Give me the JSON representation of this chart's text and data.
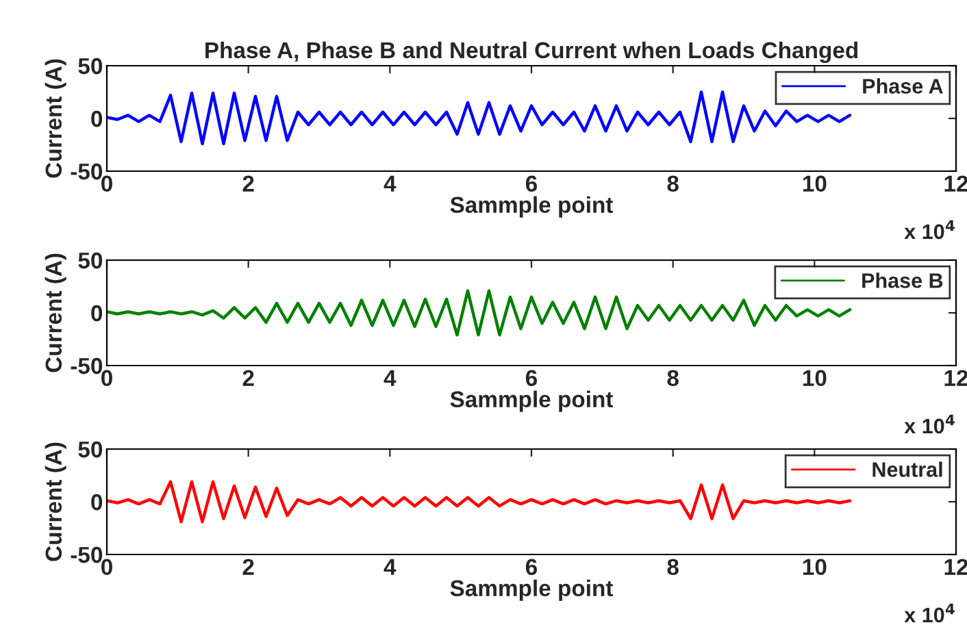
{
  "chart_data": [
    {
      "type": "line",
      "title": "Phase A, Phase B and Neutral Current when Loads Changed",
      "xlabel": "Sammple point",
      "ylabel": "Current (A)",
      "annotations": [
        "x 10$^{4}$"
      ],
      "x": [
        0,
        0.15,
        0.3,
        0.45,
        0.6,
        0.75,
        0.9,
        1.05,
        1.2,
        1.35,
        1.5,
        1.65,
        1.8,
        1.95,
        2.1,
        2.25,
        2.4,
        2.55,
        2.7,
        2.85,
        3.0,
        3.15,
        3.3,
        3.45,
        3.6,
        3.75,
        3.9,
        4.05,
        4.2,
        4.35,
        4.5,
        4.65,
        4.8,
        4.95,
        5.1,
        5.25,
        5.4,
        5.55,
        5.7,
        5.85,
        6.0,
        6.15,
        6.3,
        6.45,
        6.6,
        6.75,
        6.9,
        7.05,
        7.2,
        7.35,
        7.5,
        7.65,
        7.8,
        7.95,
        8.1,
        8.25,
        8.4,
        8.55,
        8.7,
        8.85,
        9.0,
        9.15,
        9.3,
        9.45,
        9.6,
        9.75,
        9.9,
        10.05,
        10.2,
        10.35,
        10.5
      ],
      "series": [
        {
          "name": "Phase A",
          "color": "#0000ff",
          "values": [
            1,
            -1,
            3,
            -3,
            3,
            -3,
            22,
            -22,
            24,
            -24,
            24,
            -24,
            24,
            -21,
            21,
            -21,
            21,
            -21,
            6,
            -6,
            6,
            -6,
            6,
            -6,
            6,
            -6,
            6,
            -6,
            6,
            -6,
            6,
            -6,
            6,
            -15,
            15,
            -15,
            15,
            -15,
            12,
            -12,
            12,
            -6,
            6,
            -6,
            6,
            -12,
            12,
            -12,
            12,
            -12,
            6,
            -6,
            6,
            -6,
            6,
            -22,
            25,
            -22,
            25,
            -22,
            12,
            -12,
            7,
            -7,
            7,
            -3,
            3,
            -3,
            3,
            -3,
            3
          ]
        }
      ],
      "xlim": [
        0,
        12
      ],
      "xticks": [
        0,
        2,
        4,
        6,
        8,
        10,
        12
      ],
      "ylim": [
        -50,
        50
      ],
      "yticks": [
        -50,
        0,
        50
      ],
      "legend": "top right",
      "grid": false,
      "line_style": "solid"
    },
    {
      "type": "line",
      "xlabel": "Sammple point",
      "ylabel": "Current (A)",
      "annotations": [
        "x 10$^{4}$"
      ],
      "x": [
        0,
        0.15,
        0.3,
        0.45,
        0.6,
        0.75,
        0.9,
        1.05,
        1.2,
        1.35,
        1.5,
        1.65,
        1.8,
        1.95,
        2.1,
        2.25,
        2.4,
        2.55,
        2.7,
        2.85,
        3.0,
        3.15,
        3.3,
        3.45,
        3.6,
        3.75,
        3.9,
        4.05,
        4.2,
        4.35,
        4.5,
        4.65,
        4.8,
        4.95,
        5.1,
        5.25,
        5.4,
        5.55,
        5.7,
        5.85,
        6.0,
        6.15,
        6.3,
        6.45,
        6.6,
        6.75,
        6.9,
        7.05,
        7.2,
        7.35,
        7.5,
        7.65,
        7.8,
        7.95,
        8.1,
        8.25,
        8.4,
        8.55,
        8.7,
        8.85,
        9.0,
        9.15,
        9.3,
        9.45,
        9.6,
        9.75,
        9.9,
        10.05,
        10.2,
        10.35,
        10.5
      ],
      "series": [
        {
          "name": "Phase B",
          "color": "#008000",
          "values": [
            1,
            -1,
            1,
            -1,
            1,
            -1,
            1,
            -1,
            1,
            -2,
            2,
            -5,
            5,
            -5,
            5,
            -9,
            9,
            -9,
            9,
            -9,
            9,
            -9,
            9,
            -12,
            12,
            -12,
            12,
            -12,
            12,
            -13,
            13,
            -13,
            13,
            -21,
            21,
            -21,
            21,
            -21,
            15,
            -15,
            15,
            -10,
            10,
            -10,
            10,
            -15,
            15,
            -15,
            15,
            -15,
            7,
            -7,
            7,
            -7,
            7,
            -7,
            7,
            -7,
            7,
            -7,
            12,
            -12,
            7,
            -7,
            7,
            -3,
            3,
            -3,
            3,
            -3,
            3
          ]
        }
      ],
      "xlim": [
        0,
        12
      ],
      "xticks": [
        0,
        2,
        4,
        6,
        8,
        10,
        12
      ],
      "ylim": [
        -50,
        50
      ],
      "yticks": [
        -50,
        0,
        50
      ],
      "legend": "top right",
      "grid": false,
      "line_style": "solid"
    },
    {
      "type": "line",
      "xlabel": "Sammple point",
      "ylabel": "Current (A)",
      "annotations": [
        "x 10$^{4}$"
      ],
      "x": [
        0,
        0.15,
        0.3,
        0.45,
        0.6,
        0.75,
        0.9,
        1.05,
        1.2,
        1.35,
        1.5,
        1.65,
        1.8,
        1.95,
        2.1,
        2.25,
        2.4,
        2.55,
        2.7,
        2.85,
        3.0,
        3.15,
        3.3,
        3.45,
        3.6,
        3.75,
        3.9,
        4.05,
        4.2,
        4.35,
        4.5,
        4.65,
        4.8,
        4.95,
        5.1,
        5.25,
        5.4,
        5.55,
        5.7,
        5.85,
        6.0,
        6.15,
        6.3,
        6.45,
        6.6,
        6.75,
        6.9,
        7.05,
        7.2,
        7.35,
        7.5,
        7.65,
        7.8,
        7.95,
        8.1,
        8.25,
        8.4,
        8.55,
        8.7,
        8.85,
        9.0,
        9.15,
        9.3,
        9.45,
        9.6,
        9.75,
        9.9,
        10.05,
        10.2,
        10.35,
        10.5
      ],
      "series": [
        {
          "name": "Neutral",
          "color": "#ff0000",
          "values": [
            1,
            -1,
            2,
            -2,
            2,
            -2,
            19,
            -19,
            19,
            -19,
            19,
            -16,
            15,
            -15,
            14,
            -14,
            13,
            -13,
            2,
            -2,
            2,
            -2,
            4,
            -4,
            4,
            -4,
            4,
            -4,
            4,
            -4,
            4,
            -4,
            4,
            -4,
            4,
            -4,
            4,
            -4,
            2,
            -2,
            2,
            -2,
            2,
            -2,
            2,
            -2,
            2,
            -2,
            1,
            -1,
            1,
            -1,
            1,
            -1,
            1,
            -16,
            16,
            -16,
            16,
            -16,
            1,
            -1,
            1,
            -1,
            1,
            -1,
            1,
            -1,
            1,
            -1,
            1
          ]
        }
      ],
      "xlim": [
        0,
        12
      ],
      "xticks": [
        0,
        2,
        4,
        6,
        8,
        10,
        12
      ],
      "ylim": [
        -50,
        50
      ],
      "yticks": [
        -50,
        0,
        50
      ],
      "legend": "top right",
      "grid": false,
      "line_style": "solid"
    }
  ]
}
